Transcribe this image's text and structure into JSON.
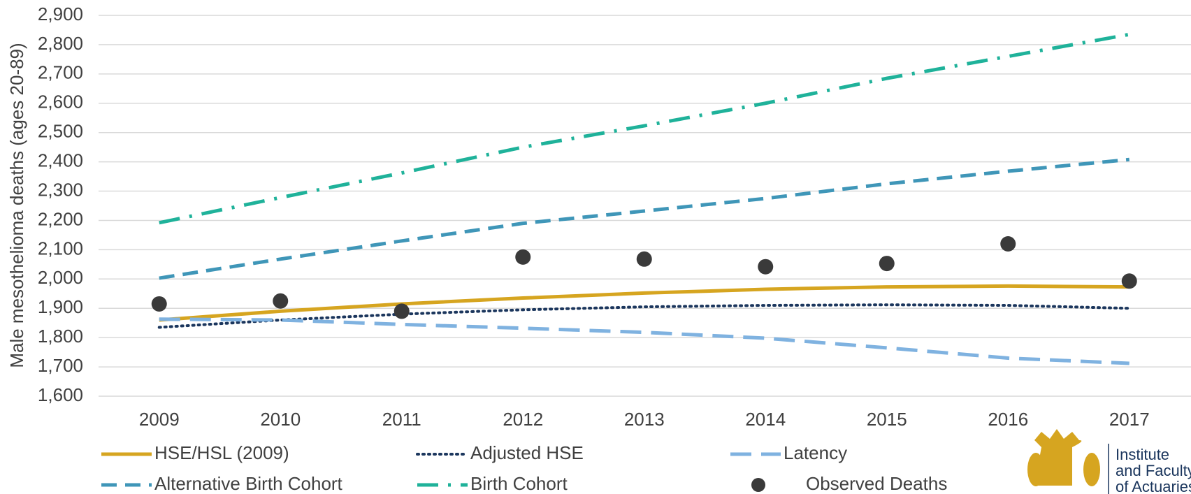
{
  "chart_data": {
    "type": "line",
    "y_label": "Male mesothelioma deaths (ages 20-89)",
    "categories": [
      "2009",
      "2010",
      "2011",
      "2012",
      "2013",
      "2014",
      "2015",
      "2016",
      "2017"
    ],
    "series": [
      {
        "name": "HSE/HSL (2009)",
        "color": "#d6a520",
        "style": "solid",
        "values": [
          1860,
          1890,
          1915,
          1935,
          1952,
          1965,
          1973,
          1976,
          1973
        ]
      },
      {
        "name": "Adjusted HSE",
        "color": "#1b365d",
        "style": "dot",
        "values": [
          1835,
          1860,
          1880,
          1895,
          1905,
          1910,
          1912,
          1910,
          1900
        ]
      },
      {
        "name": "Latency",
        "color": "#7fb2e0",
        "style": "longdash",
        "values": [
          1863,
          1860,
          1845,
          1832,
          1818,
          1798,
          1765,
          1730,
          1712
        ]
      },
      {
        "name": "Alternative Birth Cohort",
        "color": "#3f96b8",
        "style": "dash",
        "values": [
          2003,
          2068,
          2130,
          2190,
          2232,
          2275,
          2325,
          2368,
          2408
        ]
      },
      {
        "name": "Birth Cohort",
        "color": "#1fb29a",
        "style": "dashdot",
        "values": [
          2192,
          2278,
          2362,
          2450,
          2523,
          2600,
          2685,
          2760,
          2835
        ]
      },
      {
        "name": "Observed Deaths",
        "color": "#3a3a3a",
        "style": "marker",
        "values": [
          1915,
          1925,
          1890,
          2075,
          2068,
          2042,
          2053,
          2120,
          1993
        ]
      }
    ],
    "ylim": [
      1600,
      2900
    ],
    "yticks": [
      {
        "value": 1600,
        "label": "1,600"
      },
      {
        "value": 1700,
        "label": "1,700"
      },
      {
        "value": 1800,
        "label": "1,800"
      },
      {
        "value": 1900,
        "label": "1,900"
      },
      {
        "value": 2000,
        "label": "2,000"
      },
      {
        "value": 2100,
        "label": "2,100"
      },
      {
        "value": 2200,
        "label": "2,200"
      },
      {
        "value": 2300,
        "label": "2,300"
      },
      {
        "value": 2400,
        "label": "2,400"
      },
      {
        "value": 2500,
        "label": "2,500"
      },
      {
        "value": 2600,
        "label": "2,600"
      },
      {
        "value": 2700,
        "label": "2,700"
      },
      {
        "value": 2800,
        "label": "2,800"
      },
      {
        "value": 2900,
        "label": "2,900"
      }
    ],
    "grid": true
  },
  "logo": {
    "lines": [
      "Institute",
      "and Faculty",
      "of Actuaries"
    ]
  }
}
